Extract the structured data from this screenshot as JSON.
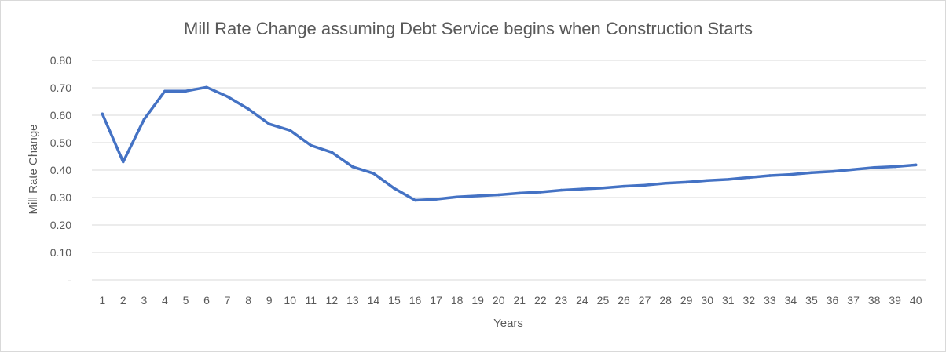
{
  "chart_data": {
    "type": "line",
    "title": "Mill Rate Change assuming Debt Service begins when Construction Starts",
    "xlabel": "Years",
    "ylabel": "Mill Rate Change",
    "ylim": [
      0,
      0.8
    ],
    "y_ticks": [
      {
        "value": 0.0,
        "label": "-"
      },
      {
        "value": 0.1,
        "label": "0.10"
      },
      {
        "value": 0.2,
        "label": "0.20"
      },
      {
        "value": 0.3,
        "label": "0.30"
      },
      {
        "value": 0.4,
        "label": "0.40"
      },
      {
        "value": 0.5,
        "label": "0.50"
      },
      {
        "value": 0.6,
        "label": "0.60"
      },
      {
        "value": 0.7,
        "label": "0.70"
      },
      {
        "value": 0.8,
        "label": "0.80"
      }
    ],
    "grid": true,
    "legend": "none",
    "line_color": "#4472c4",
    "grid_color": "#d9d9d9",
    "categories": [
      "1",
      "2",
      "3",
      "4",
      "5",
      "6",
      "7",
      "8",
      "9",
      "10",
      "11",
      "12",
      "13",
      "14",
      "15",
      "16",
      "17",
      "18",
      "19",
      "20",
      "21",
      "22",
      "23",
      "24",
      "25",
      "26",
      "27",
      "28",
      "29",
      "30",
      "31",
      "32",
      "33",
      "34",
      "35",
      "36",
      "37",
      "38",
      "39",
      "40"
    ],
    "series": [
      {
        "values": [
          0.605,
          0.43,
          0.585,
          0.688,
          0.688,
          0.702,
          0.668,
          0.623,
          0.568,
          0.545,
          0.49,
          0.465,
          0.412,
          0.388,
          0.333,
          0.29,
          0.294,
          0.302,
          0.306,
          0.31,
          0.316,
          0.32,
          0.327,
          0.331,
          0.335,
          0.341,
          0.345,
          0.352,
          0.356,
          0.362,
          0.366,
          0.373,
          0.38,
          0.384,
          0.391,
          0.395,
          0.402,
          0.409,
          0.413,
          0.419
        ]
      }
    ]
  }
}
